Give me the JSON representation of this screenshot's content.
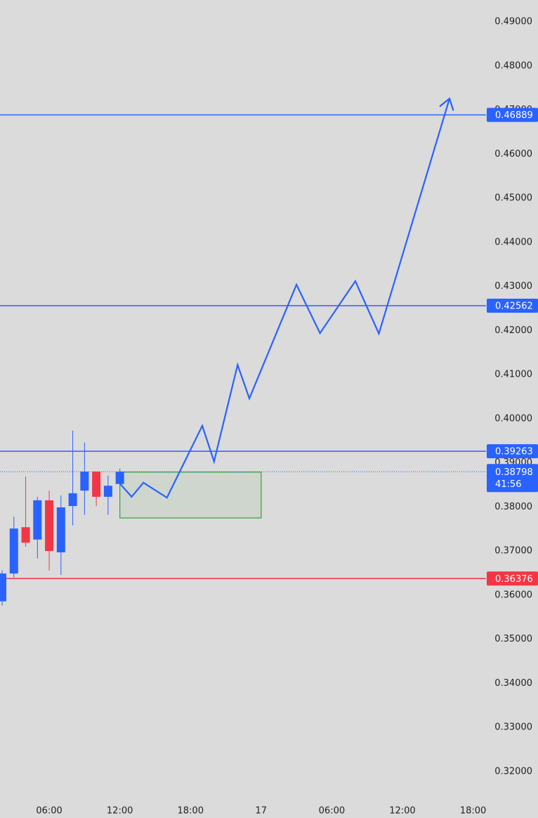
{
  "chart_data": {
    "type": "candlestick",
    "x": [
      2,
      3,
      4,
      5,
      6,
      7,
      8,
      9,
      10,
      11,
      12
    ],
    "open": [
      0.3586,
      0.3649,
      0.3754,
      0.3726,
      0.3815,
      0.3697,
      0.3802,
      0.3837,
      0.388,
      0.3823,
      0.3852
    ],
    "high": [
      0.3656,
      0.3778,
      0.3869,
      0.3823,
      0.3837,
      0.3826,
      0.3973,
      0.3946,
      0.388,
      0.3871,
      0.3887
    ],
    "low": [
      0.3576,
      0.364,
      0.371,
      0.3683,
      0.3656,
      0.3646,
      0.3758,
      0.3782,
      0.3802,
      0.3782,
      0.3851
    ],
    "close": [
      0.3649,
      0.3751,
      0.3719,
      0.3815,
      0.37,
      0.3799,
      0.3831,
      0.388,
      0.3823,
      0.3848,
      0.38798
    ],
    "up_color": "#2962ff",
    "down_color": "#f23645",
    "xlim": [
      1.82,
      43.1
    ],
    "xticks": [
      {
        "value": 6,
        "label": "06:00"
      },
      {
        "value": 12,
        "label": "12:00"
      },
      {
        "value": 18,
        "label": "18:00"
      },
      {
        "value": 24,
        "label": "17"
      },
      {
        "value": 30,
        "label": "06:00"
      },
      {
        "value": 36,
        "label": "12:00"
      },
      {
        "value": 42,
        "label": "18:00"
      }
    ],
    "ylim": [
      0.31329,
      0.49494
    ],
    "yticks": [
      {
        "value": 0.49,
        "label": "0.49000"
      },
      {
        "value": 0.48,
        "label": "0.48000"
      },
      {
        "value": 0.47,
        "label": "0.47000"
      },
      {
        "value": 0.46,
        "label": "0.46000"
      },
      {
        "value": 0.45,
        "label": "0.45000"
      },
      {
        "value": 0.44,
        "label": "0.44000"
      },
      {
        "value": 0.43,
        "label": "0.43000"
      },
      {
        "value": 0.42,
        "label": "0.42000"
      },
      {
        "value": 0.41,
        "label": "0.41000"
      },
      {
        "value": 0.4,
        "label": "0.40000"
      },
      {
        "value": 0.39,
        "label": "0.39000"
      },
      {
        "value": 0.38,
        "label": "0.38000"
      },
      {
        "value": 0.37,
        "label": "0.37000"
      },
      {
        "value": 0.36,
        "label": "0.36000"
      },
      {
        "value": 0.35,
        "label": "0.35000"
      },
      {
        "value": 0.34,
        "label": "0.34000"
      },
      {
        "value": 0.33,
        "label": "0.33000"
      },
      {
        "value": 0.32,
        "label": "0.32000"
      }
    ],
    "levels": [
      {
        "value": 0.46889,
        "color": "#2962ff"
      },
      {
        "value": 0.42562,
        "color": "#2962ff"
      },
      {
        "value": 0.39263,
        "color": "#2962ff"
      },
      {
        "value": 0.36376,
        "color": "#f23645"
      }
    ],
    "current_price": {
      "value": 0.38798,
      "countdown": "41:56",
      "color": "#2962ff"
    },
    "zone": {
      "x": [
        12,
        24
      ],
      "values": [
        0.3775,
        0.3879
      ],
      "color": "#3aa83a"
    },
    "projection": {
      "x": [
        12,
        13,
        14,
        16,
        19,
        20,
        22,
        23,
        27,
        29,
        32,
        34,
        40
      ],
      "values": [
        0.3853,
        0.3823,
        0.3855,
        0.3821,
        0.3984,
        0.3903,
        0.4122,
        0.4046,
        0.4304,
        0.4194,
        0.4312,
        0.4193,
        0.4726
      ],
      "color": "#2962ff"
    }
  }
}
